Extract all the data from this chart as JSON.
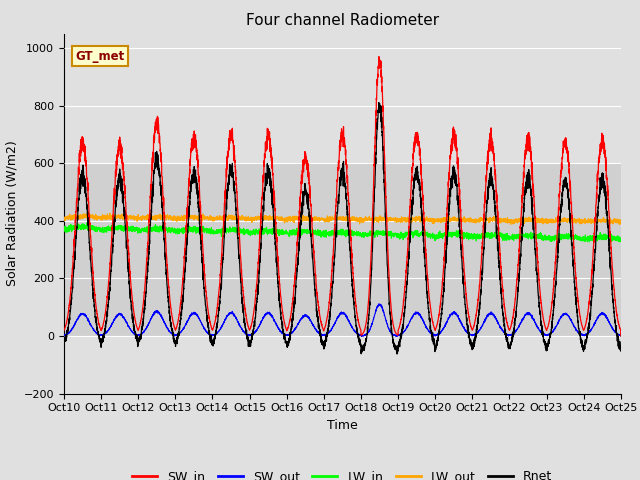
{
  "title": "Four channel Radiometer",
  "xlabel": "Time",
  "ylabel": "Solar Radiation (W/m2)",
  "ylim": [
    -200,
    1050
  ],
  "xlim": [
    0,
    360
  ],
  "annotation": "GT_met",
  "tick_labels": [
    "Oct 10",
    "Oct 11",
    "Oct 12",
    "Oct 13",
    "Oct 14",
    "Oct 15",
    "Oct 16",
    "Oct 17",
    "Oct 18",
    "Oct 19",
    "Oct 20",
    "Oct 21",
    "Oct 22",
    "Oct 23",
    "Oct 24",
    "Oct 25"
  ],
  "tick_positions": [
    0,
    24,
    48,
    72,
    96,
    120,
    144,
    168,
    192,
    216,
    240,
    264,
    288,
    312,
    336,
    360
  ],
  "series_colors": {
    "SW_in": "#ff0000",
    "SW_out": "#0000ff",
    "LW_in": "#00ff00",
    "LW_out": "#ffa500",
    "Rnet": "#000000"
  },
  "sw_in_peaks": [
    670,
    660,
    740,
    690,
    700,
    700,
    620,
    700,
    960,
    700,
    700,
    680,
    680,
    680,
    680
  ],
  "sw_in_widths": [
    4.5,
    4.5,
    4.5,
    4.5,
    4.5,
    4.5,
    4.5,
    4.5,
    3.5,
    4.5,
    4.5,
    4.5,
    4.5,
    4.5,
    4.5
  ],
  "lw_in_base": 370,
  "lw_in_trend": -2.5,
  "lw_out_base": 410,
  "lw_out_trend": -1.0,
  "n_days": 15,
  "hours_per_day": 24,
  "figsize": [
    6.4,
    4.8
  ],
  "dpi": 100,
  "shaded_ymin": 0,
  "shaded_ymax": 600,
  "yticks": [
    -200,
    0,
    200,
    400,
    600,
    800,
    1000
  ]
}
